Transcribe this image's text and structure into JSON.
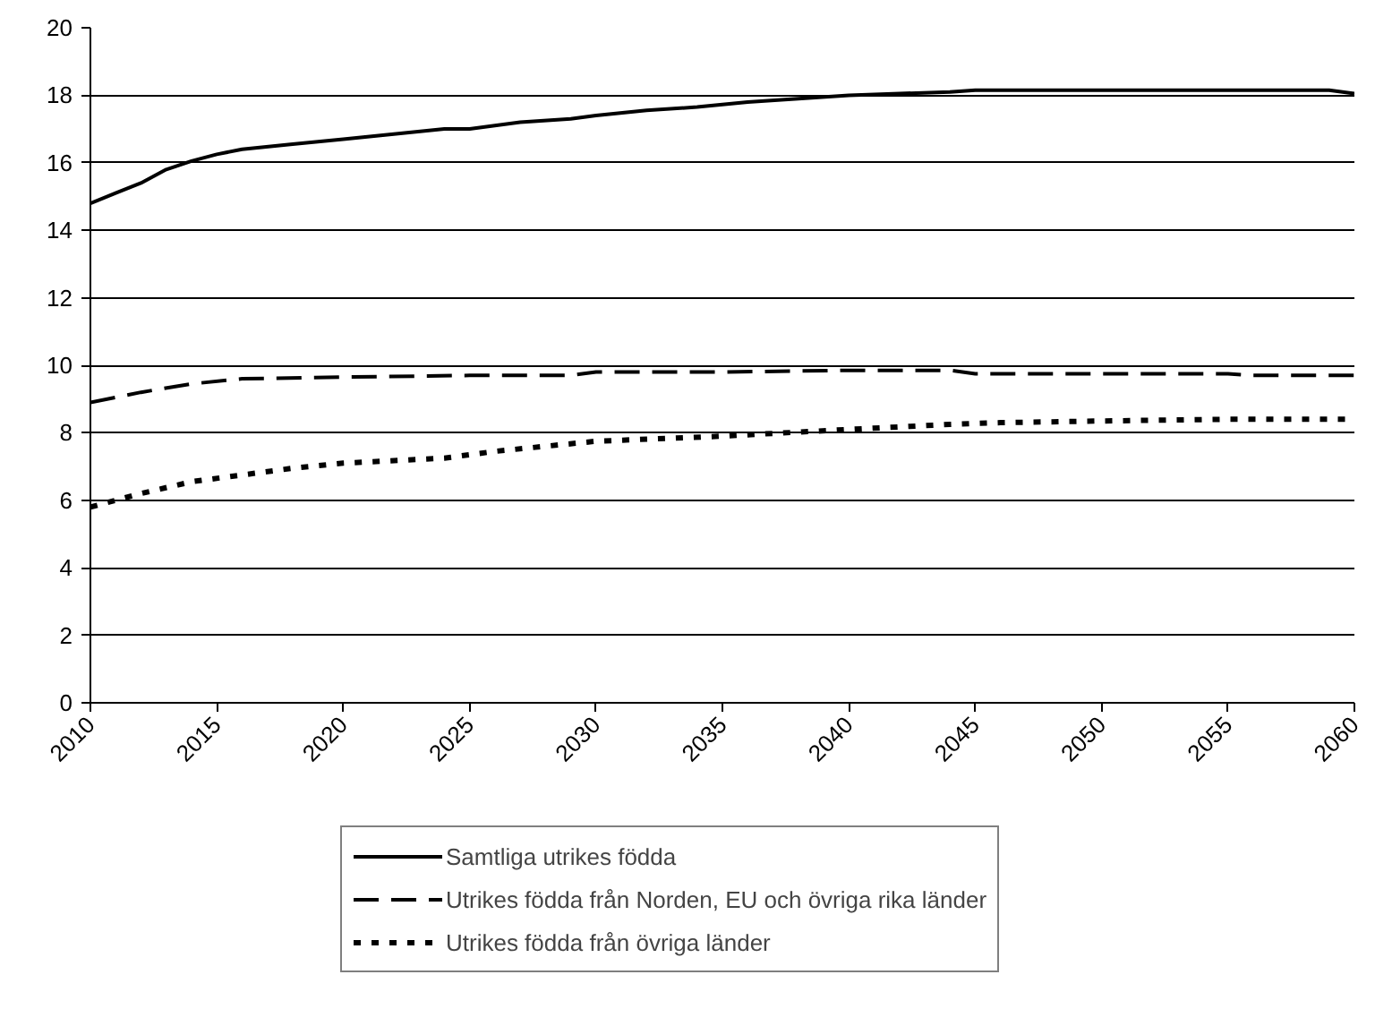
{
  "chart_data": {
    "type": "line",
    "xlim": [
      2010,
      2060
    ],
    "xticks": [
      2010,
      2015,
      2020,
      2025,
      2030,
      2035,
      2040,
      2045,
      2050,
      2055,
      2060
    ],
    "ylim": [
      0,
      20
    ],
    "yticks": [
      0,
      2,
      4,
      6,
      8,
      10,
      12,
      14,
      16,
      18,
      20
    ],
    "grid": "y",
    "legend": "bottom",
    "marker": "none",
    "series": [
      {
        "name": "Samtliga utrikes födda",
        "color": "#000000",
        "line_style": "solid",
        "x": [
          2010,
          2011,
          2012,
          2013,
          2014,
          2015,
          2016,
          2018,
          2020,
          2022,
          2024,
          2025,
          2027,
          2029,
          2030,
          2032,
          2034,
          2036,
          2038,
          2040,
          2042,
          2044,
          2045,
          2050,
          2055,
          2059,
          2060
        ],
        "values": [
          14.8,
          15.1,
          15.4,
          15.8,
          16.05,
          16.25,
          16.4,
          16.55,
          16.7,
          16.85,
          17.0,
          17.0,
          17.2,
          17.3,
          17.4,
          17.55,
          17.65,
          17.8,
          17.9,
          18.0,
          18.05,
          18.1,
          18.15,
          18.15,
          18.15,
          18.15,
          18.05
        ]
      },
      {
        "name": "Utrikes födda från Norden, EU och övriga rika länder",
        "color": "#000000",
        "line_style": "dashed",
        "x": [
          2010,
          2012,
          2014,
          2016,
          2020,
          2025,
          2029,
          2030,
          2035,
          2040,
          2044,
          2045,
          2050,
          2055,
          2056,
          2060
        ],
        "values": [
          8.9,
          9.2,
          9.45,
          9.6,
          9.65,
          9.7,
          9.7,
          9.8,
          9.8,
          9.85,
          9.85,
          9.75,
          9.75,
          9.75,
          9.7,
          9.7
        ]
      },
      {
        "name": "Utrikes födda från övriga länder",
        "color": "#000000",
        "line_style": "dotted",
        "x": [
          2010,
          2012,
          2014,
          2016,
          2018,
          2020,
          2024,
          2026,
          2028,
          2030,
          2035,
          2040,
          2044,
          2046,
          2050,
          2055,
          2060
        ],
        "values": [
          5.8,
          6.2,
          6.55,
          6.75,
          6.95,
          7.1,
          7.25,
          7.45,
          7.6,
          7.75,
          7.9,
          8.1,
          8.25,
          8.3,
          8.35,
          8.4,
          8.4
        ]
      }
    ]
  }
}
